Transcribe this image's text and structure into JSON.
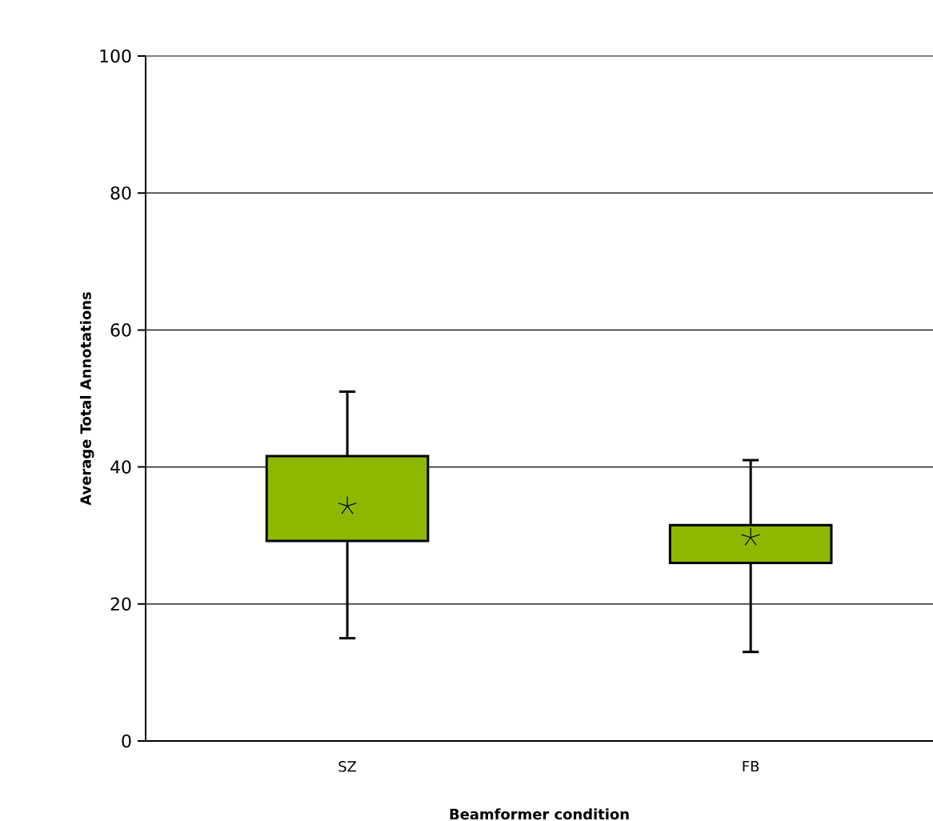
{
  "chart_data": {
    "type": "box",
    "xlabel": "Beamformer condition",
    "ylabel": "Average Total Annotations",
    "categories": [
      "SZ",
      "FB"
    ],
    "boxes": [
      {
        "low": 15,
        "q1": 29.2,
        "median": 34.3,
        "q3": 41.6,
        "high": 51
      },
      {
        "low": 13,
        "q1": 26,
        "median": 29.7,
        "q3": 31.5,
        "high": 41
      }
    ],
    "color": "#8cb800",
    "ylim": [
      0,
      100
    ],
    "yticks": [
      0,
      20,
      40,
      60,
      80,
      100
    ],
    "grid": "y",
    "marker": "star"
  }
}
